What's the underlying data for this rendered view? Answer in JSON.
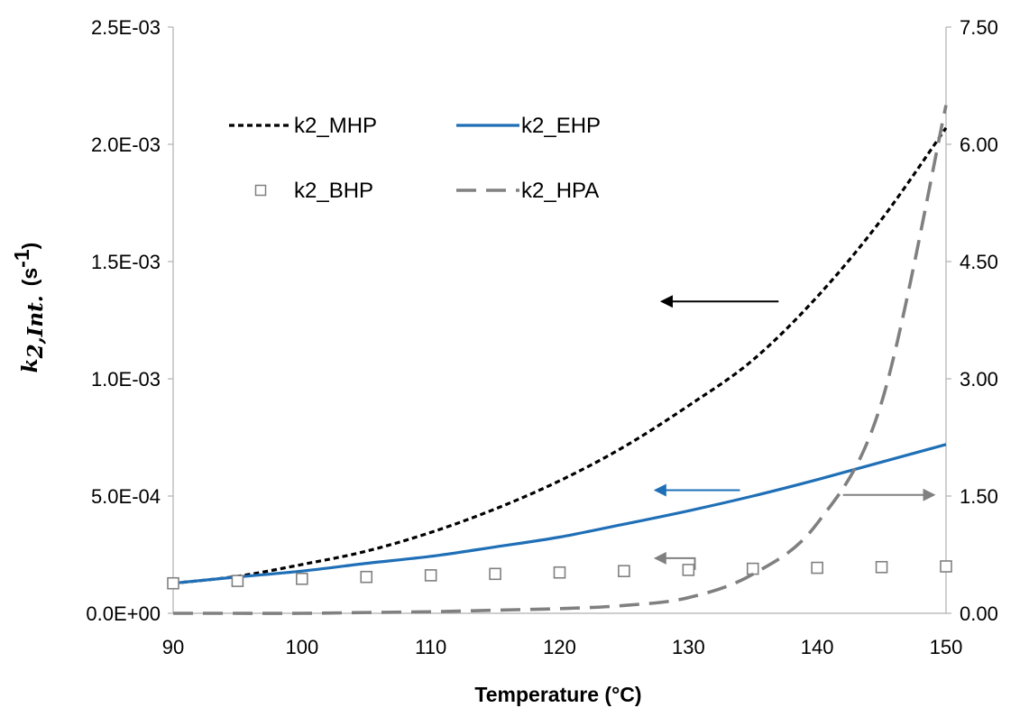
{
  "chart_data": {
    "type": "line",
    "xlabel": "Temperature (°C)",
    "ylabel": {
      "symbol": "k",
      "subscript": "2,Int.",
      "unit": "(s",
      "unit_exp": "-1",
      "unit_close": ")"
    },
    "x": [
      90,
      95,
      100,
      105,
      110,
      115,
      120,
      125,
      130,
      135,
      140,
      145,
      150
    ],
    "xlim": [
      90,
      150
    ],
    "x_ticks": [
      "90",
      "100",
      "110",
      "120",
      "130",
      "140",
      "150"
    ],
    "x_tick_values": [
      90,
      100,
      110,
      120,
      130,
      140,
      150
    ],
    "ylim_left": [
      0,
      0.0025
    ],
    "y_left_ticks": [
      "0.0E+00",
      "5.0E-04",
      "1.0E-03",
      "1.5E-03",
      "2.0E-03",
      "2.5E-03"
    ],
    "y_left_tick_values": [
      0,
      0.0005,
      0.001,
      0.0015,
      0.002,
      0.0025
    ],
    "ylim_right": [
      0,
      7.5
    ],
    "y_right_ticks": [
      "0.00",
      "1.50",
      "3.00",
      "4.50",
      "6.00",
      "7.50"
    ],
    "y_right_tick_values": [
      0,
      1.5,
      3.0,
      4.5,
      6.0,
      7.5
    ],
    "grid": false,
    "legend_position": "top-left",
    "series": [
      {
        "name": "k2_MHP",
        "axis": "left",
        "style": "dotted",
        "color": "#000000",
        "values": [
          0.000128,
          0.000158,
          0.000208,
          0.000265,
          0.000345,
          0.000445,
          0.000565,
          0.00071,
          0.000885,
          0.00108,
          0.00135,
          0.00168,
          0.00207
        ]
      },
      {
        "name": "k2_EHP",
        "axis": "left",
        "style": "solid",
        "color": "#1f6fb7",
        "values": [
          0.000128,
          0.000155,
          0.00018,
          0.000213,
          0.000243,
          0.000283,
          0.000325,
          0.00038,
          0.000437,
          0.0005,
          0.00057,
          0.000645,
          0.00072
        ]
      },
      {
        "name": "k2_BHP",
        "axis": "left",
        "style": "markers",
        "color": "#808080",
        "values": [
          0.000128,
          0.000138,
          0.000147,
          0.000155,
          0.000162,
          0.000168,
          0.000174,
          0.00018,
          0.000185,
          0.00019,
          0.000194,
          0.000197,
          0.0002
        ]
      },
      {
        "name": "k2_HPA",
        "axis": "right",
        "style": "dashed",
        "color": "#808080",
        "values": [
          0,
          0,
          0,
          0.01,
          0.02,
          0.04,
          0.06,
          0.1,
          0.2,
          0.5,
          1.15,
          2.7,
          6.5
        ]
      }
    ],
    "annotations": [
      {
        "type": "arrow",
        "direction": "left",
        "color": "#000000",
        "from": {
          "x": 137,
          "y": 0.00133
        },
        "to": {
          "x": 128,
          "y": 0.00133
        }
      },
      {
        "type": "arrow",
        "direction": "left",
        "color": "#1f6fb7",
        "from": {
          "x": 134,
          "y": 0.000525
        },
        "to": {
          "x": 127.5,
          "y": 0.000525
        }
      },
      {
        "type": "arrow",
        "direction": "right",
        "color": "#808080",
        "from": {
          "x": 142,
          "y": 0.000505
        },
        "to": {
          "x": 149,
          "y": 0.000505
        }
      },
      {
        "type": "elbow-arrow",
        "direction": "left",
        "color": "#808080",
        "from": {
          "x": 130.5,
          "y": 0.000185
        },
        "corner": {
          "x": 130.5,
          "y": 0.000235
        },
        "to": {
          "x": 127.5,
          "y": 0.000235
        }
      }
    ]
  }
}
